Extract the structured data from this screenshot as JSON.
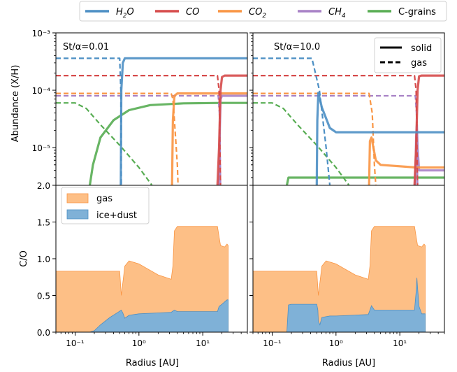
{
  "legend": {
    "items": [
      {
        "label": "H",
        "sub": "2",
        "post": "O",
        "italic": true,
        "color": "#4c8fc4"
      },
      {
        "label": "CO",
        "sub": "",
        "post": "",
        "italic": true,
        "color": "#d64b4b"
      },
      {
        "label": "CO",
        "sub": "2",
        "post": "",
        "italic": true,
        "color": "#f99543"
      },
      {
        "label": "CH",
        "sub": "4",
        "post": "",
        "italic": true,
        "color": "#a882c6"
      },
      {
        "label": "C-grains",
        "sub": "",
        "post": "",
        "italic": false,
        "color": "#58ad53"
      }
    ]
  },
  "chart_data": [
    {
      "type": "line",
      "panel": "top-left",
      "title": "St/α=0.01",
      "ylabel": "Abundance (X/H)",
      "yscale": "log",
      "xscale": "log",
      "xlim": [
        0.05,
        50
      ],
      "ylim": [
        2.2e-06,
        0.001
      ],
      "yticks": [
        "10⁻³",
        "10⁻⁴",
        "10⁻⁵"
      ],
      "series": [
        {
          "name": "H2O",
          "phase": "solid",
          "color": "#4c8fc4",
          "x": [
            0.52,
            0.53,
            0.56,
            0.6,
            1,
            10,
            50
          ],
          "y": [
            2.2e-06,
            0.0001,
            0.0003,
            0.00036,
            0.00036,
            0.00036,
            0.00036
          ]
        },
        {
          "name": "H2O",
          "phase": "gas",
          "color": "#4c8fc4",
          "x": [
            0.05,
            0.5,
            0.52,
            0.53
          ],
          "y": [
            0.00036,
            0.00036,
            0.0001,
            2.2e-06
          ]
        },
        {
          "name": "CO",
          "phase": "solid",
          "color": "#d64b4b",
          "x": [
            17,
            18,
            19,
            20,
            22,
            50
          ],
          "y": [
            2.2e-06,
            1e-05,
            0.0001,
            0.00017,
            0.00018,
            0.00018
          ]
        },
        {
          "name": "CO",
          "phase": "gas",
          "color": "#d64b4b",
          "x": [
            0.05,
            17,
            18,
            19
          ],
          "y": [
            0.00018,
            0.00018,
            0.0001,
            2.2e-06
          ]
        },
        {
          "name": "CO2",
          "phase": "solid",
          "color": "#f99543",
          "x": [
            3.3,
            3.4,
            3.6,
            4,
            10,
            50
          ],
          "y": [
            2.2e-06,
            3e-05,
            8e-05,
            8.8e-05,
            8.8e-05,
            8.8e-05
          ]
        },
        {
          "name": "CO2",
          "phase": "gas",
          "color": "#f99543",
          "x": [
            0.05,
            3.2,
            3.4,
            3.6,
            4,
            4.1
          ],
          "y": [
            8.8e-05,
            8.8e-05,
            7e-05,
            3e-05,
            5e-06,
            2.2e-06
          ]
        },
        {
          "name": "CH4",
          "phase": "solid",
          "color": "#a882c6",
          "x": [
            18,
            18.5,
            19,
            20,
            50
          ],
          "y": [
            2.2e-06,
            2e-05,
            7e-05,
            8e-05,
            8e-05
          ]
        },
        {
          "name": "CH4",
          "phase": "gas",
          "color": "#a882c6",
          "x": [
            0.05,
            17.5,
            18.5,
            19
          ],
          "y": [
            8e-05,
            8e-05,
            3e-05,
            2.2e-06
          ]
        },
        {
          "name": "C-grains",
          "phase": "solid",
          "color": "#58ad53",
          "x": [
            0.17,
            0.19,
            0.25,
            0.4,
            0.7,
            1.5,
            5,
            20,
            50
          ],
          "y": [
            2.2e-06,
            5e-06,
            1.5e-05,
            3e-05,
            4.5e-05,
            5.5e-05,
            5.9e-05,
            6e-05,
            6e-05
          ]
        },
        {
          "name": "C-grains",
          "phase": "gas",
          "color": "#58ad53",
          "x": [
            0.05,
            0.1,
            0.15,
            0.25,
            0.5,
            1,
            1.6
          ],
          "y": [
            6e-05,
            6e-05,
            4.8e-05,
            2.5e-05,
            1.1e-05,
            4.5e-06,
            2.2e-06
          ]
        }
      ]
    },
    {
      "type": "line",
      "panel": "top-right",
      "title": "St/α=10.0",
      "yscale": "log",
      "xscale": "log",
      "xlim": [
        0.05,
        50
      ],
      "ylim": [
        2.2e-06,
        0.001
      ],
      "legend": [
        {
          "label": "solid",
          "style": "solid"
        },
        {
          "label": "gas",
          "style": "dashed"
        }
      ],
      "legend_position": "top-right",
      "series": [
        {
          "name": "H2O",
          "phase": "solid",
          "color": "#4c8fc4",
          "x": [
            0.5,
            0.51,
            0.53,
            0.6,
            0.8,
            1,
            5,
            50
          ],
          "y": [
            2.2e-06,
            3e-05,
            9e-05,
            5e-05,
            2.2e-05,
            1.85e-05,
            1.85e-05,
            1.85e-05
          ]
        },
        {
          "name": "H2O",
          "phase": "gas",
          "color": "#4c8fc4",
          "x": [
            0.05,
            0.42,
            0.55,
            0.7,
            0.8
          ],
          "y": [
            0.00036,
            0.00036,
            0.0001,
            1e-05,
            2.2e-06
          ]
        },
        {
          "name": "CO",
          "phase": "solid",
          "color": "#d64b4b",
          "x": [
            17,
            18,
            19,
            20,
            22,
            50
          ],
          "y": [
            2.2e-06,
            1e-05,
            0.0001,
            0.000175,
            0.00018,
            0.00018
          ]
        },
        {
          "name": "CO",
          "phase": "gas",
          "color": "#d64b4b",
          "x": [
            0.05,
            17,
            18,
            19
          ],
          "y": [
            0.00018,
            0.00018,
            0.0001,
            2.2e-06
          ]
        },
        {
          "name": "CO2",
          "phase": "solid",
          "color": "#f99543",
          "x": [
            3.3,
            3.4,
            3.6,
            4.2,
            5,
            18,
            50
          ],
          "y": [
            2.2e-06,
            1.3e-05,
            1.5e-05,
            6e-06,
            5e-06,
            4.5e-06,
            4.5e-06
          ]
        },
        {
          "name": "CO2",
          "phase": "gas",
          "color": "#f99543",
          "x": [
            0.05,
            3.3,
            3.7,
            4,
            4.2
          ],
          "y": [
            8.8e-05,
            8.8e-05,
            4e-05,
            5e-06,
            2.2e-06
          ]
        },
        {
          "name": "CH4",
          "phase": "solid",
          "color": "#a882c6",
          "x": [
            17.5,
            18,
            18.5,
            19,
            20,
            50
          ],
          "y": [
            2.2e-06,
            1.5e-05,
            2.5e-05,
            1e-05,
            4e-06,
            4e-06
          ]
        },
        {
          "name": "CH4",
          "phase": "gas",
          "color": "#a882c6",
          "x": [
            0.05,
            17.5,
            18.5,
            19
          ],
          "y": [
            8e-05,
            8e-05,
            3e-05,
            2.2e-06
          ]
        },
        {
          "name": "C-grains",
          "phase": "solid",
          "color": "#58ad53",
          "x": [
            0.17,
            0.18,
            0.2,
            1,
            10,
            50
          ],
          "y": [
            2.2e-06,
            3e-06,
            3e-06,
            3e-06,
            3e-06,
            3e-06
          ]
        },
        {
          "name": "C-grains",
          "phase": "gas",
          "color": "#58ad53",
          "x": [
            0.05,
            0.1,
            0.15,
            0.25,
            0.5,
            1,
            1.6
          ],
          "y": [
            6e-05,
            6e-05,
            4.8e-05,
            2.5e-05,
            1.1e-05,
            4.5e-06,
            2.2e-06
          ]
        }
      ]
    },
    {
      "type": "area",
      "panel": "bottom-left",
      "ylabel": "C/O",
      "xlabel": "Radius [AU]",
      "xscale": "log",
      "xlim": [
        0.05,
        50
      ],
      "ylim": [
        0,
        2.0
      ],
      "yticks": [
        "0.0",
        "0.5",
        "1.0",
        "1.5",
        "2.0"
      ],
      "xticks": [
        "10⁻¹",
        "10⁰",
        "10¹"
      ],
      "legend": [
        {
          "label": "gas",
          "color": "#fdbf86"
        },
        {
          "label": "ice+dust",
          "color": "#7fb1d7"
        }
      ],
      "legend_position": "top-left",
      "series": [
        {
          "name": "gas",
          "color": "#fdbf86",
          "x": [
            0.05,
            0.5,
            0.53,
            0.6,
            0.7,
            1,
            2,
            3.2,
            3.4,
            3.6,
            4,
            10,
            17,
            18,
            19,
            22,
            24,
            25
          ],
          "y": [
            0.83,
            0.83,
            0.5,
            0.9,
            0.97,
            0.93,
            0.78,
            0.72,
            0.9,
            1.38,
            1.44,
            1.44,
            1.44,
            1.3,
            1.18,
            1.16,
            1.2,
            1.18
          ]
        },
        {
          "name": "ice+dust",
          "color": "#7fb1d7",
          "x": [
            0.17,
            0.2,
            0.25,
            0.35,
            0.45,
            0.53,
            0.56,
            0.6,
            0.7,
            1,
            3.2,
            3.6,
            4,
            10,
            17,
            18,
            20,
            24,
            25
          ],
          "y": [
            0,
            0.02,
            0.1,
            0.2,
            0.26,
            0.3,
            0.26,
            0.19,
            0.23,
            0.25,
            0.27,
            0.3,
            0.28,
            0.28,
            0.28,
            0.35,
            0.38,
            0.44,
            0.44
          ]
        }
      ]
    },
    {
      "type": "area",
      "panel": "bottom-right",
      "xlabel": "Radius [AU]",
      "xscale": "log",
      "xlim": [
        0.05,
        50
      ],
      "ylim": [
        0,
        2.0
      ],
      "xticks": [
        "10⁻¹",
        "10⁰",
        "10¹"
      ],
      "series": [
        {
          "name": "gas",
          "color": "#fdbf86",
          "x": [
            0.05,
            0.5,
            0.53,
            0.6,
            0.7,
            1,
            2,
            3.2,
            3.4,
            3.6,
            4,
            10,
            17,
            18,
            19,
            22,
            24,
            25
          ],
          "y": [
            0.83,
            0.83,
            0.5,
            0.9,
            0.97,
            0.93,
            0.78,
            0.72,
            0.9,
            1.38,
            1.44,
            1.44,
            1.44,
            1.3,
            1.18,
            1.16,
            1.2,
            1.18
          ]
        },
        {
          "name": "ice+dust",
          "color": "#7fb1d7",
          "x": [
            0.17,
            0.18,
            0.2,
            0.5,
            0.52,
            0.53,
            0.56,
            0.6,
            0.8,
            1,
            3.2,
            3.4,
            3.6,
            4,
            10,
            17,
            18,
            18.5,
            19,
            20,
            22,
            25
          ],
          "y": [
            0,
            0.37,
            0.38,
            0.38,
            0.3,
            0.15,
            0.1,
            0.2,
            0.22,
            0.22,
            0.24,
            0.3,
            0.36,
            0.3,
            0.3,
            0.3,
            0.55,
            0.74,
            0.6,
            0.35,
            0.25,
            0.25
          ]
        }
      ]
    }
  ]
}
